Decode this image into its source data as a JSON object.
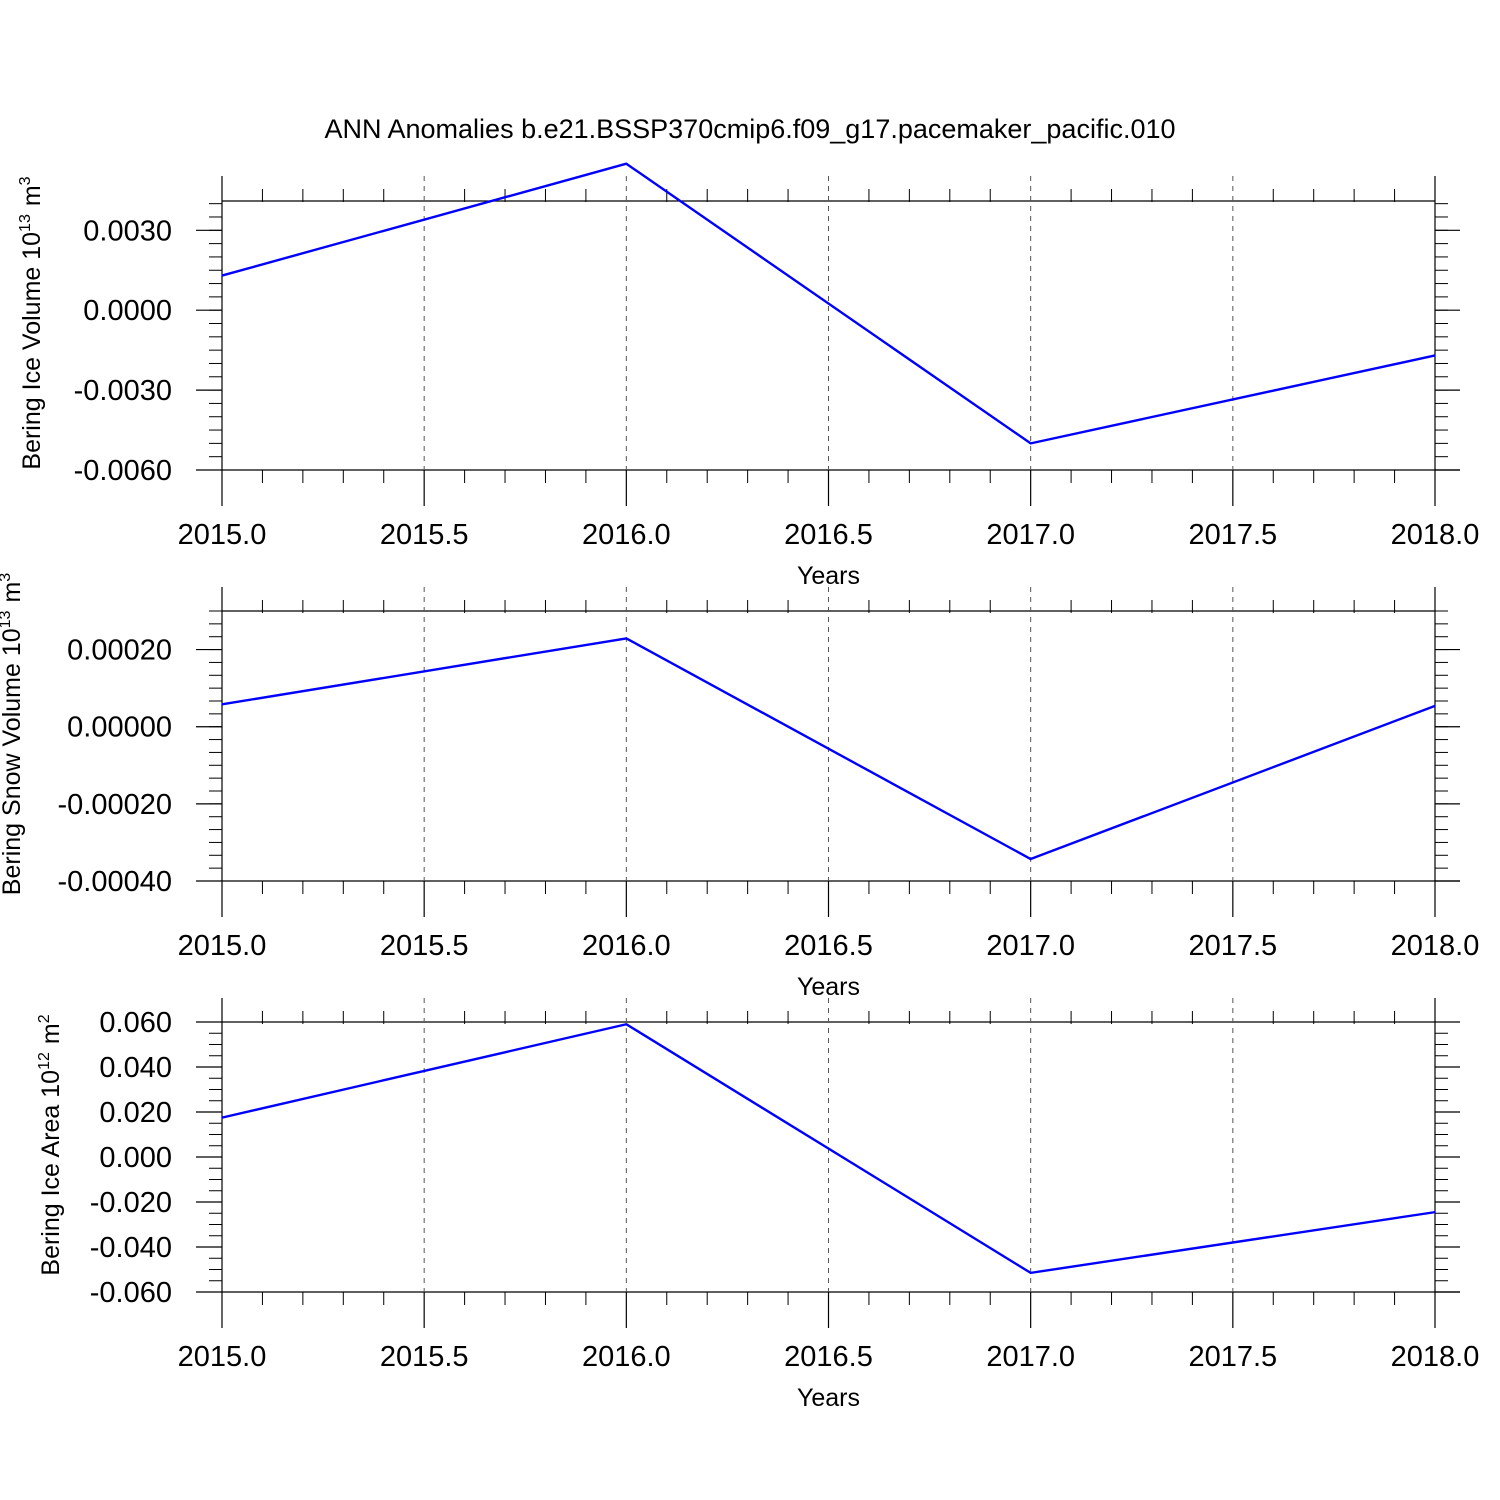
{
  "title": "ANN Anomalies b.e21.BSSP370cmip6.f09_g17.pacemaker_pacific.010",
  "colors": {
    "line": "#0000ff",
    "axis": "#000000",
    "grid": "#555555"
  },
  "chart_data": [
    {
      "type": "line",
      "ylabel": "Bering Ice Volume 10",
      "ylabel_exp": "13",
      "ylabel_unit": "m",
      "ylabel_unit_exp": "3",
      "xlabel": "Years",
      "xlim": [
        2015.0,
        2018.0
      ],
      "ylim": [
        -0.006,
        0.0041
      ],
      "xticks": [
        "2015.0",
        "2015.5",
        "2016.0",
        "2016.5",
        "2017.0",
        "2017.5",
        "2018.0"
      ],
      "yticks": [
        {
          "value": 0.003,
          "label": "0.0030"
        },
        {
          "value": 0.0,
          "label": "0.0000"
        },
        {
          "value": -0.003,
          "label": "-0.0030"
        },
        {
          "value": -0.006,
          "label": "-0.0060"
        }
      ],
      "grid": "vertical dashed at major x ticks",
      "series": [
        {
          "x": [
            2015,
            2016,
            2017,
            2018
          ],
          "y": [
            0.0013,
            0.0055,
            -0.005,
            -0.0017
          ]
        }
      ]
    },
    {
      "type": "line",
      "ylabel": "Bering Snow Volume 10",
      "ylabel_exp": "13",
      "ylabel_unit": "m",
      "ylabel_unit_exp": "3",
      "xlabel": "Years",
      "xlim": [
        2015.0,
        2018.0
      ],
      "ylim": [
        -0.0004,
        0.0003
      ],
      "xticks": [
        "2015.0",
        "2015.5",
        "2016.0",
        "2016.5",
        "2017.0",
        "2017.5",
        "2018.0"
      ],
      "yticks": [
        {
          "value": 0.0002,
          "label": "0.00020"
        },
        {
          "value": 0.0,
          "label": "0.00000"
        },
        {
          "value": -0.0002,
          "label": "-0.00020"
        },
        {
          "value": -0.0004,
          "label": "-0.00040"
        }
      ],
      "grid": "vertical dashed at major x ticks",
      "series": [
        {
          "x": [
            2015,
            2016,
            2017,
            2018
          ],
          "y": [
            5.8e-05,
            0.000229,
            -0.000343,
            5.4e-05
          ]
        }
      ]
    },
    {
      "type": "line",
      "ylabel": "Bering Ice Area 10",
      "ylabel_exp": "12",
      "ylabel_unit": "m",
      "ylabel_unit_exp": "2",
      "xlabel": "Years",
      "xlim": [
        2015.0,
        2018.0
      ],
      "ylim": [
        -0.06,
        0.06
      ],
      "xticks": [
        "2015.0",
        "2015.5",
        "2016.0",
        "2016.5",
        "2017.0",
        "2017.5",
        "2018.0"
      ],
      "yticks": [
        {
          "value": 0.06,
          "label": "0.060"
        },
        {
          "value": 0.04,
          "label": "0.040"
        },
        {
          "value": 0.02,
          "label": "0.020"
        },
        {
          "value": 0.0,
          "label": "0.000"
        },
        {
          "value": -0.02,
          "label": "-0.020"
        },
        {
          "value": -0.04,
          "label": "-0.040"
        },
        {
          "value": -0.06,
          "label": "-0.060"
        }
      ],
      "grid": "vertical dashed at major x ticks",
      "series": [
        {
          "x": [
            2015,
            2016,
            2017,
            2018
          ],
          "y": [
            0.0175,
            0.059,
            -0.0515,
            -0.0245
          ]
        }
      ]
    }
  ]
}
